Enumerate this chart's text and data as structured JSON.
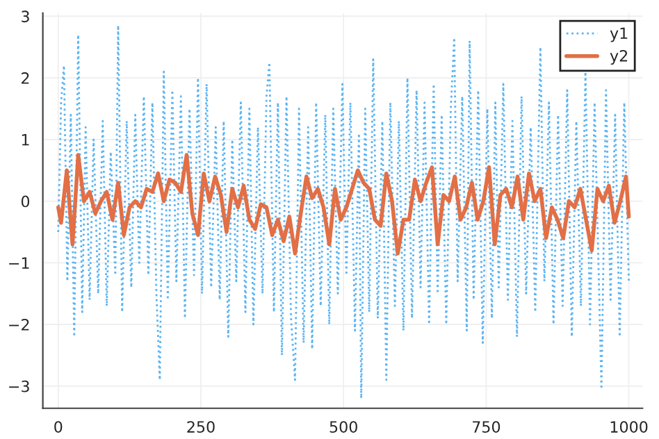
{
  "chart_data": {
    "type": "line",
    "xlim": [
      -27,
      1024
    ],
    "ylim": [
      -3.36,
      3.05
    ],
    "xticks": [
      0,
      250,
      500,
      750,
      1000
    ],
    "yticks": [
      {
        "value": -3,
        "label": "−3"
      },
      {
        "value": -2,
        "label": "−2"
      },
      {
        "value": -1,
        "label": "−1"
      },
      0,
      1,
      2,
      3
    ],
    "grid": true,
    "legend": "top right",
    "series": [
      {
        "name": "y1",
        "color": "#5ab4f2",
        "line_style": "dotted",
        "x": [
          0,
          5,
          10,
          16,
          22,
          28,
          35,
          42,
          48,
          55,
          62,
          70,
          78,
          85,
          92,
          100,
          105,
          112,
          120,
          128,
          135,
          142,
          150,
          158,
          165,
          172,
          178,
          185,
          192,
          200,
          207,
          215,
          222,
          230,
          238,
          245,
          252,
          260,
          268,
          276,
          283,
          290,
          298,
          305,
          312,
          320,
          328,
          335,
          342,
          350,
          358,
          365,
          370,
          378,
          385,
          392,
          400,
          408,
          415,
          422,
          430,
          438,
          445,
          452,
          460,
          468,
          475,
          482,
          490,
          498,
          505,
          512,
          520,
          527,
          531,
          538,
          545,
          552,
          560,
          568,
          575,
          582,
          590,
          597,
          605,
          612,
          620,
          628,
          635,
          642,
          650,
          658,
          665,
          672,
          680,
          688,
          694,
          700,
          708,
          716,
          721,
          728,
          736,
          744,
          752,
          760,
          766,
          772,
          780,
          788,
          796,
          804,
          812,
          820,
          828,
          836,
          845,
          852,
          860,
          868,
          876,
          884,
          892,
          900,
          908,
          916,
          924,
          932,
          940,
          948,
          952,
          960,
          968,
          976,
          984,
          992,
          1000
        ],
        "values": [
          -0.5,
          1.6,
          2.2,
          -1.3,
          1.4,
          -2.2,
          2.7,
          -1.8,
          1.2,
          -1.6,
          1.0,
          -1.5,
          1.3,
          -1.7,
          0.8,
          -1.2,
          2.85,
          -1.8,
          1.3,
          -1.4,
          1.4,
          -1.0,
          1.7,
          -1.2,
          1.6,
          -1.5,
          -2.9,
          2.1,
          -1.6,
          1.8,
          -1.3,
          1.7,
          -1.9,
          1.5,
          -1.2,
          2.0,
          -1.5,
          1.9,
          -1.4,
          1.2,
          -1.6,
          1.3,
          -2.2,
          1.0,
          -1.3,
          1.6,
          -1.8,
          1.5,
          -2.0,
          1.2,
          -1.5,
          1.7,
          2.25,
          -1.8,
          1.6,
          -2.5,
          1.7,
          -1.9,
          -2.9,
          1.5,
          -2.3,
          1.2,
          -2.4,
          1.6,
          -1.7,
          1.4,
          -2.0,
          1.5,
          -1.5,
          1.9,
          -1.2,
          1.6,
          -2.1,
          1.1,
          -3.2,
          1.5,
          -1.8,
          2.3,
          -1.9,
          1.3,
          -2.9,
          1.6,
          -1.7,
          1.3,
          -2.1,
          2.0,
          -1.9,
          1.8,
          -1.4,
          1.6,
          -2.0,
          1.9,
          -1.5,
          1.4,
          -2.0,
          1.5,
          2.65,
          -1.3,
          1.7,
          -2.1,
          2.6,
          -1.6,
          1.8,
          -2.3,
          1.5,
          -1.9,
          1.6,
          -1.4,
          1.9,
          -1.6,
          1.3,
          -2.2,
          1.7,
          -1.5,
          1.2,
          -1.8,
          2.5,
          -1.3,
          1.6,
          -2.0,
          1.4,
          -1.7,
          1.8,
          -2.2,
          1.3,
          -1.7,
          2.1,
          -2.0,
          1.6,
          -1.5,
          -3.05,
          1.8,
          -1.6,
          1.4,
          -2.2,
          1.6,
          -1.3
        ]
      },
      {
        "name": "y2",
        "color": "#e26f46",
        "line_style": "solid",
        "x": [
          0,
          5,
          15,
          25,
          35,
          45,
          55,
          65,
          75,
          85,
          95,
          105,
          115,
          125,
          135,
          145,
          155,
          165,
          175,
          185,
          195,
          205,
          215,
          225,
          235,
          245,
          255,
          265,
          275,
          285,
          295,
          305,
          315,
          325,
          335,
          345,
          355,
          365,
          375,
          385,
          395,
          405,
          415,
          425,
          435,
          445,
          455,
          465,
          475,
          485,
          495,
          505,
          515,
          525,
          535,
          545,
          555,
          565,
          575,
          585,
          595,
          605,
          615,
          625,
          635,
          645,
          655,
          665,
          675,
          685,
          695,
          705,
          715,
          725,
          735,
          745,
          755,
          765,
          775,
          785,
          795,
          805,
          815,
          825,
          835,
          845,
          855,
          865,
          875,
          885,
          895,
          905,
          915,
          925,
          935,
          945,
          955,
          965,
          975,
          985,
          995,
          1000
        ],
        "values": [
          -0.1,
          -0.35,
          0.5,
          -0.7,
          0.75,
          0.0,
          0.15,
          -0.2,
          0.0,
          0.15,
          -0.3,
          0.3,
          -0.55,
          -0.1,
          0.0,
          -0.1,
          0.2,
          0.15,
          0.45,
          0.0,
          0.35,
          0.3,
          0.15,
          0.75,
          -0.2,
          -0.55,
          0.45,
          0.0,
          0.4,
          0.1,
          -0.5,
          0.2,
          -0.1,
          0.25,
          -0.3,
          -0.45,
          -0.05,
          -0.1,
          -0.55,
          -0.3,
          -0.65,
          -0.25,
          -0.85,
          -0.2,
          0.4,
          0.05,
          0.2,
          -0.1,
          -0.7,
          0.2,
          -0.3,
          -0.1,
          0.2,
          0.5,
          0.3,
          0.2,
          -0.3,
          -0.4,
          0.45,
          0.0,
          -0.85,
          -0.3,
          -0.3,
          0.35,
          0.0,
          0.3,
          0.55,
          -0.7,
          0.1,
          0.0,
          0.4,
          -0.3,
          -0.1,
          0.3,
          -0.3,
          0.0,
          0.55,
          -0.7,
          0.1,
          0.2,
          -0.1,
          0.4,
          -0.3,
          0.45,
          0.0,
          0.2,
          -0.6,
          -0.1,
          -0.3,
          -0.6,
          0.0,
          -0.1,
          0.2,
          -0.3,
          -0.8,
          0.2,
          0.0,
          0.25,
          -0.35,
          0.0,
          0.4,
          -0.25
        ]
      }
    ]
  }
}
